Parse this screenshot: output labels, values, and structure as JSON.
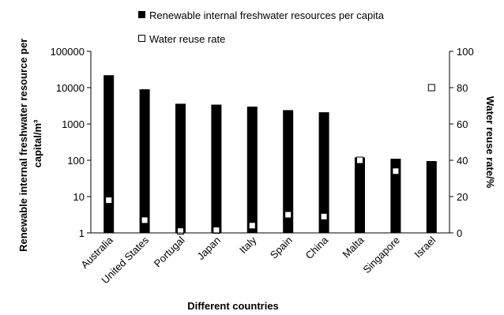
{
  "chart_data": {
    "type": "bar",
    "categories": [
      "Australia",
      "United States",
      "Portugal",
      "Japan",
      "Italy",
      "Spain",
      "China",
      "Malta",
      "Singapore",
      "Israel"
    ],
    "series": [
      {
        "name": "Renewable internal freshwater resources per capita",
        "kind": "bar",
        "axis": "left",
        "color": "#000000",
        "values": [
          22000,
          9000,
          3600,
          3400,
          3000,
          2400,
          2100,
          120,
          110,
          95
        ]
      },
      {
        "name": "Water reuse rate",
        "kind": "marker",
        "axis": "right",
        "color": "#ffffff",
        "values": [
          18,
          7,
          1,
          1.5,
          4,
          10,
          9,
          40,
          34,
          80
        ]
      }
    ],
    "xlabel": "Different countries",
    "ylabel_left": "Renewable internal freshwater resource per capital/m³",
    "ylabel_right": "Water reuse rate/%",
    "yscale_left": "log",
    "ylim_left": [
      1,
      100000
    ],
    "yticks_left": [
      "1",
      "10",
      "100",
      "1000",
      "10000",
      "100000"
    ],
    "ylim_right": [
      0,
      100
    ],
    "yticks_right": [
      "0",
      "20",
      "40",
      "60",
      "80",
      "100"
    ],
    "grid": false,
    "legend_position": "top"
  }
}
